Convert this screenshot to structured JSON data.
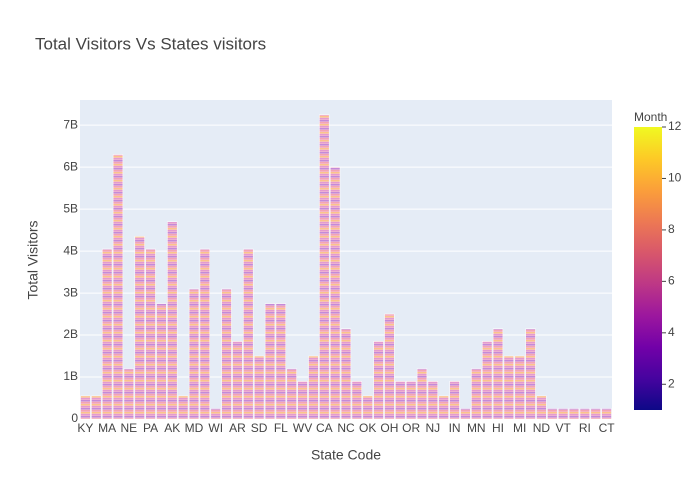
{
  "chart_data": {
    "type": "bar",
    "title": "Total Visitors Vs States visitors",
    "xlabel": "State Code",
    "ylabel": "Total Visitors",
    "categories": [
      "KY",
      null,
      "MA",
      null,
      "NE",
      null,
      "PA",
      null,
      "AK",
      null,
      "MD",
      null,
      "WI",
      null,
      "AR",
      null,
      "SD",
      null,
      "FL",
      null,
      "WV",
      null,
      "CA",
      null,
      "NC",
      null,
      "OK",
      null,
      "OH",
      null,
      "OR",
      null,
      "NJ",
      null,
      "IN",
      null,
      "MN",
      null,
      "HI",
      null,
      "MI",
      null,
      "ND",
      null,
      "VT",
      null,
      "RI",
      null,
      "CT"
    ],
    "values": [
      550000000,
      550000000,
      4050000000,
      6300000000,
      1200000000,
      4350000000,
      4050000000,
      2750000000,
      4700000000,
      550000000,
      3100000000,
      4050000000,
      250000000,
      3100000000,
      1850000000,
      4050000000,
      1500000000,
      2750000000,
      2750000000,
      1200000000,
      900000000,
      1500000000,
      7250000000,
      6000000000,
      2150000000,
      900000000,
      550000000,
      1850000000,
      2500000000,
      900000000,
      900000000,
      1200000000,
      900000000,
      550000000,
      900000000,
      250000000,
      1200000000,
      1850000000,
      2150000000,
      1500000000,
      1500000000,
      2150000000,
      550000000,
      250000000,
      250000000,
      250000000,
      250000000,
      250000000,
      250000000
    ],
    "ylim": [
      0,
      7600000000
    ],
    "yticks": [
      0,
      {
        "value": 1000000000,
        "label": "1B"
      },
      {
        "value": 2000000000,
        "label": "2B"
      },
      {
        "value": 3000000000,
        "label": "3B"
      },
      {
        "value": 4000000000,
        "label": "4B"
      },
      {
        "value": 5000000000,
        "label": "5B"
      },
      {
        "value": 6000000000,
        "label": "6B"
      },
      {
        "value": 7000000000,
        "label": "7B"
      }
    ],
    "grid": true,
    "colorscale": [
      "#0d0887",
      "#46039f",
      "#7201a8",
      "#9c179e",
      "#bd3786",
      "#d8576b",
      "#ed7953",
      "#fb9f3a",
      "#fdca26",
      "#f0f921"
    ],
    "colorbar": {
      "title": "Month",
      "range": [
        1,
        12
      ],
      "ticks": [
        2,
        4,
        6,
        8,
        10,
        12
      ]
    }
  }
}
